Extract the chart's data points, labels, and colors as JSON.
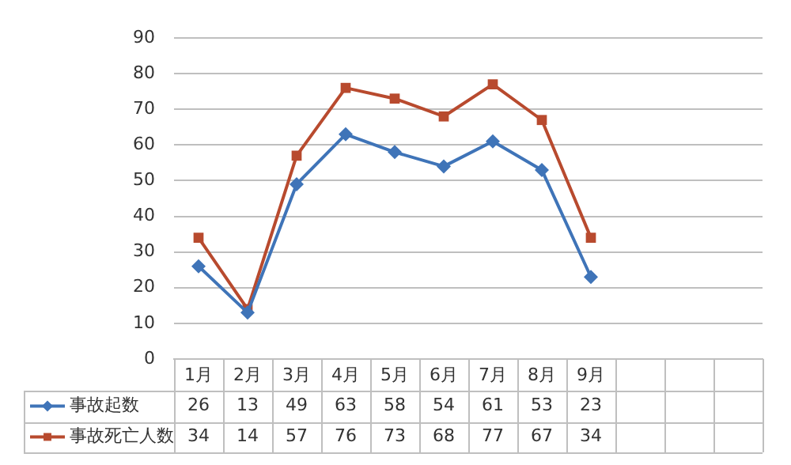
{
  "chart_data": {
    "type": "line",
    "categories": [
      "1月",
      "2月",
      "3月",
      "4月",
      "5月",
      "6月",
      "7月",
      "8月",
      "9月",
      null,
      null,
      null
    ],
    "series": [
      {
        "name": "事故起数",
        "color": "#3f74b8",
        "marker": "diamond",
        "values": [
          26,
          13,
          49,
          63,
          58,
          54,
          61,
          53,
          23,
          null,
          null,
          null
        ]
      },
      {
        "name": "事故死亡人数",
        "color": "#b84a2e",
        "marker": "square",
        "values": [
          34,
          14,
          57,
          76,
          73,
          68,
          77,
          67,
          34,
          null,
          null,
          null
        ]
      }
    ],
    "ylim": [
      0,
      90
    ],
    "yticks": [
      0,
      10,
      20,
      30,
      40,
      50,
      60,
      70,
      80,
      90
    ],
    "grid": "y",
    "legend": "bottom",
    "data_labels": true
  }
}
